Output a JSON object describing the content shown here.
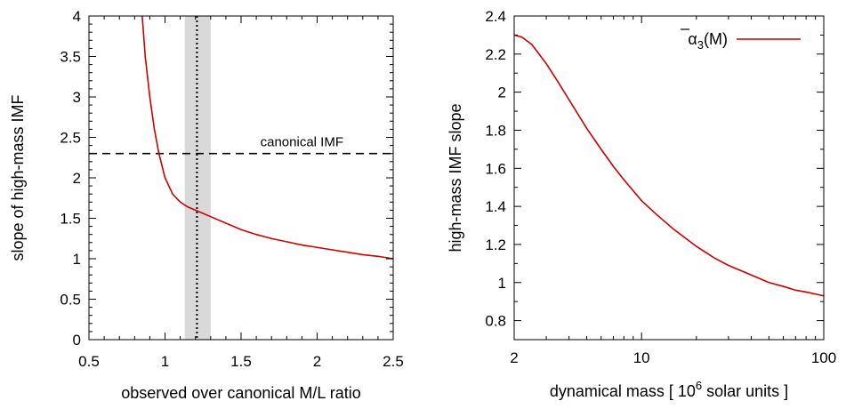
{
  "chart_data": [
    {
      "type": "line",
      "title": "",
      "xlabel": "observed over canonical M/L ratio",
      "ylabel": "slope of high-mass IMF",
      "xlim": [
        0.5,
        2.5
      ],
      "ylim": [
        0,
        4
      ],
      "xticks": [
        0.5,
        1,
        1.5,
        2,
        2.5
      ],
      "xtick_labels": [
        "0.5",
        "1",
        "1.5",
        "2",
        "2.5"
      ],
      "yticks": [
        0,
        0.5,
        1,
        1.5,
        2,
        2.5,
        3,
        3.5,
        4
      ],
      "ytick_labels": [
        "0",
        "0.5",
        "1",
        "1.5",
        "2",
        "2.5",
        "3",
        "3.5",
        "4"
      ],
      "grid": false,
      "series": [
        {
          "color": "#cc0000",
          "x": [
            0.85,
            0.87,
            0.9,
            0.93,
            0.96,
            1.0,
            1.05,
            1.1,
            1.15,
            1.2,
            1.25,
            1.3,
            1.4,
            1.5,
            1.6,
            1.7,
            1.8,
            1.9,
            2.0,
            2.1,
            2.2,
            2.3,
            2.4,
            2.5
          ],
          "y": [
            4.0,
            3.5,
            3.0,
            2.6,
            2.3,
            2.0,
            1.8,
            1.7,
            1.64,
            1.6,
            1.56,
            1.52,
            1.44,
            1.36,
            1.3,
            1.25,
            1.21,
            1.17,
            1.14,
            1.11,
            1.08,
            1.05,
            1.03,
            1.0
          ]
        }
      ],
      "reference_line": {
        "y": 2.3,
        "label": "canonical IMF",
        "style": "dashed"
      },
      "vertical_line": {
        "x": 1.21,
        "style": "dotted"
      },
      "shaded_band": {
        "x0": 1.13,
        "x1": 1.3,
        "color": "#d9d9d9"
      }
    },
    {
      "type": "line",
      "title": "",
      "xlabel_prefix": "dynamical mass   [ 10",
      "xlabel_sup": "6",
      "xlabel_suffix": " solar units ]",
      "ylabel": "high-mass IMF slope",
      "xscale": "log",
      "xlim": [
        2,
        100
      ],
      "ylim": [
        0.7,
        2.4
      ],
      "xticks": [
        2,
        10,
        100
      ],
      "xtick_labels": [
        "2",
        "10",
        "100"
      ],
      "yticks": [
        0.8,
        1,
        1.2,
        1.4,
        1.6,
        1.8,
        2,
        2.2,
        2.4
      ],
      "ytick_labels": [
        "0.8",
        "1",
        "1.2",
        "1.4",
        "1.6",
        "1.8",
        "2",
        "2.2",
        "2.4"
      ],
      "grid": false,
      "legend": {
        "position": "top-right"
      },
      "series": [
        {
          "name_main": "α",
          "name_sub": "3",
          "name_suffix": "(M)",
          "color": "#cc0000",
          "x": [
            2,
            2.2,
            2.5,
            3,
            3.5,
            4,
            5,
            6,
            7,
            8,
            10,
            12,
            15,
            20,
            25,
            30,
            40,
            50,
            60,
            70,
            80,
            100
          ],
          "y": [
            2.3,
            2.29,
            2.25,
            2.15,
            2.05,
            1.96,
            1.81,
            1.7,
            1.61,
            1.54,
            1.43,
            1.36,
            1.28,
            1.19,
            1.13,
            1.09,
            1.04,
            1.0,
            0.98,
            0.96,
            0.95,
            0.93
          ]
        }
      ]
    }
  ]
}
